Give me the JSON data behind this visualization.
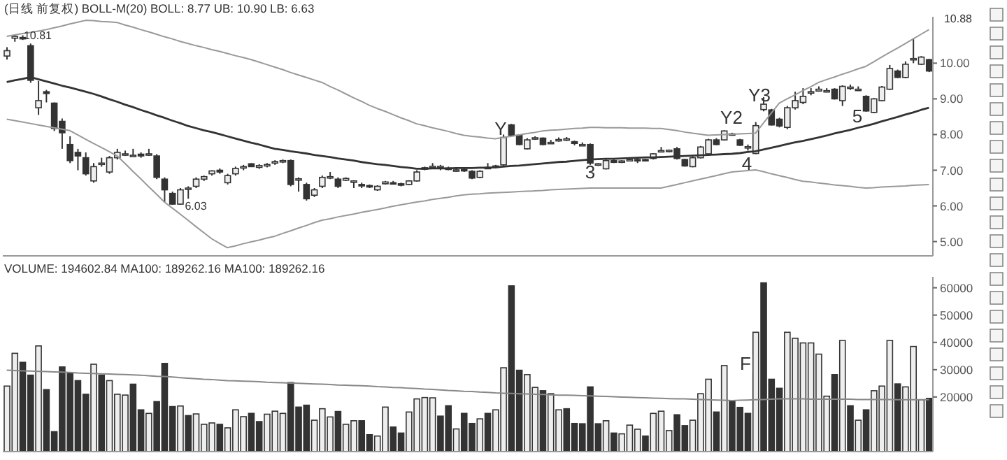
{
  "chart_data": [
    {
      "type": "candlestick",
      "title": "(日线 前复权) BOLL-M(20) BOLL: 8.77 UB: 10.90 LB: 6.63",
      "categories": [
        null,
        null,
        null,
        null,
        null,
        null,
        null,
        null,
        null,
        null,
        null,
        null,
        null,
        null,
        null,
        null,
        null,
        null,
        null,
        null,
        null,
        null,
        null,
        null,
        null,
        null,
        null,
        null,
        null,
        null,
        null,
        null,
        null,
        null,
        null,
        null,
        null,
        null,
        null,
        null,
        null,
        null,
        null,
        null,
        null,
        null,
        null,
        null,
        null,
        null,
        null,
        null,
        null,
        null,
        null,
        null,
        null,
        null,
        null,
        null,
        null,
        null,
        null,
        null,
        null,
        null,
        null,
        null,
        null,
        null,
        null,
        null,
        null,
        null,
        null,
        null,
        null,
        null,
        null,
        null,
        null,
        null,
        null,
        null,
        null,
        null,
        null,
        null,
        null,
        null,
        null,
        null,
        null,
        null,
        null,
        null,
        null,
        null,
        null,
        null,
        null,
        null,
        null,
        null,
        null,
        null,
        null,
        null,
        null,
        null,
        null,
        null,
        null,
        null,
        null,
        null,
        null,
        null
      ],
      "ylim": [
        4.6,
        11.3
      ],
      "yticks": [
        {
          "value": 5,
          "label": "5.00"
        },
        {
          "value": 6,
          "label": "6.00"
        },
        {
          "value": 7,
          "label": "7.00"
        },
        {
          "value": 8,
          "label": "8.00"
        },
        {
          "value": 9,
          "label": "9.00"
        },
        {
          "value": 10,
          "label": "10.00"
        }
      ],
      "tick_labels": "y",
      "color": "#333333",
      "ohlc": [
        [
          10.2,
          10.45,
          10.1,
          10.35
        ],
        [
          10.7,
          10.81,
          10.6,
          10.75
        ],
        [
          10.72,
          10.78,
          10.65,
          10.7
        ],
        [
          10.49,
          10.55,
          9.45,
          9.52
        ],
        [
          8.75,
          9.5,
          8.55,
          8.95
        ],
        [
          9.2,
          9.25,
          8.9,
          9.15
        ],
        [
          8.88,
          8.9,
          8.1,
          8.17
        ],
        [
          8.37,
          8.45,
          7.6,
          8.05
        ],
        [
          7.72,
          7.95,
          7.2,
          7.27
        ],
        [
          7.5,
          7.6,
          7.0,
          7.4
        ],
        [
          7.35,
          7.5,
          6.85,
          6.9
        ],
        [
          6.7,
          7.2,
          6.65,
          7.1
        ],
        [
          7.18,
          7.35,
          7.1,
          7.2
        ],
        [
          6.95,
          7.4,
          6.9,
          7.35
        ],
        [
          7.35,
          7.6,
          7.3,
          7.5
        ],
        [
          7.44,
          7.55,
          7.4,
          7.46
        ],
        [
          7.4,
          7.6,
          7.38,
          7.42
        ],
        [
          7.45,
          7.5,
          7.35,
          7.4
        ],
        [
          7.44,
          7.6,
          7.4,
          7.46
        ],
        [
          7.4,
          7.45,
          6.75,
          6.8
        ],
        [
          6.75,
          6.8,
          6.1,
          6.45
        ],
        [
          6.35,
          6.4,
          6.03,
          6.05
        ],
        [
          6.05,
          6.5,
          6.03,
          6.45
        ],
        [
          6.48,
          6.55,
          6.2,
          6.5
        ],
        [
          6.55,
          6.8,
          6.5,
          6.75
        ],
        [
          6.75,
          6.85,
          6.7,
          6.82
        ],
        [
          6.9,
          7.0,
          6.85,
          6.98
        ],
        [
          7.0,
          7.05,
          6.9,
          6.95
        ],
        [
          6.65,
          6.9,
          6.6,
          6.85
        ],
        [
          6.9,
          7.1,
          6.85,
          7.05
        ],
        [
          7.08,
          7.15,
          7.0,
          7.1
        ],
        [
          7.18,
          7.2,
          7.1,
          7.1
        ],
        [
          7.08,
          7.17,
          7.04,
          7.13
        ],
        [
          7.12,
          7.2,
          7.08,
          7.16
        ],
        [
          7.2,
          7.28,
          7.15,
          7.24
        ],
        [
          7.23,
          7.3,
          7.2,
          7.27
        ],
        [
          7.27,
          7.3,
          6.55,
          6.6
        ],
        [
          6.74,
          6.8,
          6.4,
          6.76
        ],
        [
          6.6,
          6.65,
          6.15,
          6.2
        ],
        [
          6.3,
          6.5,
          6.25,
          6.45
        ],
        [
          6.55,
          6.85,
          6.5,
          6.8
        ],
        [
          6.78,
          6.95,
          6.75,
          6.82
        ],
        [
          6.75,
          6.8,
          6.5,
          6.55
        ],
        [
          6.72,
          6.8,
          6.7,
          6.77
        ],
        [
          6.69,
          6.72,
          6.5,
          6.7
        ],
        [
          6.6,
          6.65,
          6.5,
          6.56
        ],
        [
          6.57,
          6.6,
          6.5,
          6.53
        ],
        [
          6.45,
          6.58,
          6.42,
          6.55
        ],
        [
          6.62,
          6.7,
          6.6,
          6.67
        ],
        [
          6.65,
          6.7,
          6.6,
          6.62
        ],
        [
          6.62,
          6.65,
          6.55,
          6.58
        ],
        [
          6.6,
          6.72,
          6.58,
          6.7
        ],
        [
          6.7,
          7.0,
          6.68,
          6.95
        ],
        [
          7.03,
          7.1,
          7.0,
          7.07
        ],
        [
          7.08,
          7.2,
          7.05,
          7.11
        ],
        [
          7.1,
          7.15,
          7.0,
          7.11
        ],
        [
          7.03,
          7.1,
          7.0,
          7.06
        ],
        [
          6.98,
          7.05,
          6.95,
          7.01
        ],
        [
          7.02,
          7.05,
          6.95,
          6.98
        ],
        [
          6.97,
          7.0,
          6.75,
          6.78
        ],
        [
          6.8,
          7.0,
          6.78,
          6.97
        ],
        [
          7.06,
          7.2,
          7.04,
          7.08
        ],
        [
          7.08,
          7.15,
          7.05,
          7.12
        ],
        [
          7.15,
          8.0,
          7.1,
          7.92
        ],
        [
          8.27,
          8.3,
          7.95,
          7.98
        ],
        [
          7.98,
          8.0,
          7.7,
          7.72
        ],
        [
          7.6,
          7.9,
          7.58,
          7.85
        ],
        [
          7.88,
          7.95,
          7.85,
          7.91
        ],
        [
          7.9,
          7.92,
          7.7,
          7.72
        ],
        [
          7.76,
          7.85,
          7.74,
          7.78
        ],
        [
          7.84,
          7.92,
          7.8,
          7.86
        ],
        [
          7.86,
          7.93,
          7.82,
          7.88
        ],
        [
          7.8,
          7.83,
          7.7,
          7.75
        ],
        [
          7.71,
          7.78,
          7.68,
          7.72
        ],
        [
          7.72,
          7.75,
          7.15,
          7.2
        ],
        [
          7.16,
          7.2,
          7.12,
          7.18
        ],
        [
          7.04,
          7.3,
          7.02,
          7.27
        ],
        [
          7.27,
          7.3,
          7.2,
          7.22
        ],
        [
          7.22,
          7.28,
          7.2,
          7.26
        ],
        [
          7.28,
          7.33,
          7.25,
          7.3
        ],
        [
          7.3,
          7.35,
          7.2,
          7.29
        ],
        [
          7.3,
          7.32,
          7.25,
          7.28
        ],
        [
          7.33,
          7.48,
          7.3,
          7.46
        ],
        [
          7.53,
          7.65,
          7.5,
          7.55
        ],
        [
          7.53,
          7.58,
          7.5,
          7.56
        ],
        [
          7.6,
          7.65,
          7.3,
          7.33
        ],
        [
          7.3,
          7.32,
          7.1,
          7.12
        ],
        [
          7.1,
          7.38,
          7.08,
          7.35
        ],
        [
          7.35,
          7.68,
          7.33,
          7.65
        ],
        [
          7.46,
          7.88,
          7.44,
          7.85
        ],
        [
          7.85,
          7.9,
          7.7,
          7.72
        ],
        [
          7.85,
          8.12,
          7.83,
          8.1
        ],
        [
          8.02,
          8.05,
          7.98,
          8.0
        ],
        [
          7.85,
          7.88,
          7.68,
          7.7
        ],
        [
          7.64,
          7.72,
          7.55,
          7.66
        ],
        [
          7.47,
          8.35,
          7.45,
          8.25
        ],
        [
          8.7,
          9.05,
          8.65,
          8.85
        ],
        [
          8.69,
          8.72,
          8.25,
          8.27
        ],
        [
          8.43,
          8.47,
          8.2,
          8.24
        ],
        [
          8.2,
          8.8,
          8.15,
          8.75
        ],
        [
          8.75,
          9.2,
          8.7,
          8.95
        ],
        [
          8.9,
          9.3,
          8.85,
          9.07
        ],
        [
          9.17,
          9.3,
          9.1,
          9.2
        ],
        [
          9.22,
          9.35,
          9.2,
          9.27
        ],
        [
          9.21,
          9.3,
          9.18,
          9.23
        ],
        [
          9.27,
          9.3,
          8.98,
          9.0
        ],
        [
          8.95,
          9.38,
          8.8,
          9.35
        ],
        [
          9.3,
          9.4,
          9.25,
          9.33
        ],
        [
          9.25,
          9.35,
          9.22,
          9.27
        ],
        [
          9.07,
          9.1,
          8.64,
          8.66
        ],
        [
          8.62,
          9.02,
          8.6,
          9.0
        ],
        [
          8.95,
          9.36,
          8.93,
          9.33
        ],
        [
          9.27,
          9.95,
          9.25,
          9.85
        ],
        [
          9.78,
          9.82,
          9.58,
          9.6
        ],
        [
          9.6,
          10.05,
          9.58,
          9.97
        ],
        [
          10.1,
          10.7,
          10.0,
          10.13
        ],
        [
          9.97,
          10.2,
          9.95,
          10.17
        ],
        [
          10.1,
          10.12,
          9.75,
          9.78
        ]
      ],
      "series": [
        {
          "type": "line",
          "color": "#333333",
          "values": [
            9.47,
            9.52,
            9.56,
            9.61,
            9.55,
            9.49,
            9.43,
            9.37,
            9.32,
            9.26,
            9.2,
            9.14,
            9.07,
            8.99,
            8.92,
            8.84,
            8.77,
            8.69,
            8.62,
            8.54,
            8.47,
            8.39,
            8.32,
            8.24,
            8.18,
            8.12,
            8.07,
            8.01,
            7.95,
            7.89,
            7.83,
            7.77,
            7.72,
            7.66,
            7.6,
            7.57,
            7.53,
            7.5,
            7.47,
            7.43,
            7.4,
            7.37,
            7.33,
            7.3,
            7.27,
            7.23,
            7.2,
            7.17,
            7.15,
            7.12,
            7.09,
            7.07,
            7.04,
            7.04,
            7.05,
            7.05,
            7.05,
            7.06,
            7.06,
            7.06,
            7.07,
            7.07,
            7.08,
            7.1,
            7.12,
            7.13,
            7.15,
            7.17,
            7.19,
            7.21,
            7.23,
            7.24,
            7.26,
            7.28,
            7.3,
            7.31,
            7.32,
            7.32,
            7.33,
            7.34,
            7.35,
            7.36,
            7.36,
            7.37,
            7.38,
            7.39,
            7.4,
            7.41,
            7.42,
            7.43,
            7.44,
            7.45,
            7.46,
            7.48,
            7.51,
            7.53,
            7.58,
            7.63,
            7.68,
            7.73,
            7.78,
            7.82,
            7.87,
            7.92,
            7.97,
            8.03,
            8.08,
            8.13,
            8.19,
            8.24,
            8.3,
            8.37,
            8.43,
            8.49,
            8.56,
            8.62,
            8.69,
            8.75
          ]
        },
        {
          "type": "line",
          "color": "#999999",
          "values": [
            10.75,
            10.79,
            10.83,
            10.86,
            10.9,
            10.94,
            10.99,
            11.04,
            11.1,
            11.15,
            11.2,
            11.19,
            11.17,
            11.16,
            11.14,
            11.07,
            11.01,
            10.94,
            10.88,
            10.81,
            10.74,
            10.68,
            10.61,
            10.55,
            10.49,
            10.44,
            10.38,
            10.33,
            10.27,
            10.21,
            10.16,
            10.1,
            10.03,
            9.96,
            9.89,
            9.82,
            9.74,
            9.67,
            9.6,
            9.53,
            9.46,
            9.35,
            9.25,
            9.14,
            9.03,
            8.93,
            8.82,
            8.73,
            8.65,
            8.56,
            8.47,
            8.39,
            8.3,
            8.25,
            8.19,
            8.14,
            8.09,
            8.03,
            7.98,
            7.95,
            7.93,
            7.9,
            7.88,
            7.92,
            7.95,
            7.99,
            8.03,
            8.06,
            8.1,
            8.12,
            8.13,
            8.15,
            8.17,
            8.18,
            8.2,
            8.2,
            8.19,
            8.19,
            8.19,
            8.18,
            8.18,
            8.18,
            8.17,
            8.17,
            8.14,
            8.11,
            8.07,
            8.04,
            8.01,
            7.98,
            7.99,
            8.0,
            8.01,
            8.02,
            8.03,
            8.04,
            8.32,
            8.6,
            8.88,
            9.0,
            9.11,
            9.23,
            9.34,
            9.46,
            9.54,
            9.61,
            9.69,
            9.76,
            9.84,
            9.91,
            10.04,
            10.17,
            10.3,
            10.42,
            10.55,
            10.68,
            10.81,
            10.94
          ]
        },
        {
          "type": "line",
          "color": "#999999",
          "values": [
            8.43,
            8.39,
            8.35,
            8.31,
            8.27,
            8.23,
            8.19,
            8.15,
            8.11,
            7.99,
            7.87,
            7.75,
            7.64,
            7.52,
            7.4,
            7.19,
            6.97,
            6.76,
            6.54,
            6.33,
            6.11,
            5.94,
            5.77,
            5.6,
            5.42,
            5.25,
            5.08,
            4.95,
            4.83,
            4.88,
            4.94,
            4.99,
            5.04,
            5.1,
            5.15,
            5.23,
            5.3,
            5.38,
            5.45,
            5.53,
            5.6,
            5.64,
            5.69,
            5.73,
            5.77,
            5.82,
            5.86,
            5.9,
            5.94,
            5.99,
            6.03,
            6.07,
            6.11,
            6.14,
            6.18,
            6.21,
            6.24,
            6.28,
            6.31,
            6.33,
            6.34,
            6.36,
            6.37,
            6.38,
            6.39,
            6.4,
            6.41,
            6.42,
            6.43,
            6.45,
            6.46,
            6.47,
            6.48,
            6.49,
            6.5,
            6.5,
            6.5,
            6.5,
            6.5,
            6.5,
            6.5,
            6.5,
            6.5,
            6.5,
            6.55,
            6.6,
            6.65,
            6.7,
            6.75,
            6.8,
            6.85,
            6.9,
            6.95,
            6.97,
            6.99,
            7.01,
            6.96,
            6.9,
            6.85,
            6.8,
            6.74,
            6.69,
            6.67,
            6.64,
            6.62,
            6.59,
            6.57,
            6.55,
            6.52,
            6.5,
            6.51,
            6.53,
            6.54,
            6.55,
            6.56,
            6.58,
            6.59,
            6.6
          ]
        }
      ],
      "annotations": [
        "10.81",
        "6.03",
        "Y",
        "Y2",
        "Y3",
        "3",
        "4",
        "5",
        "10.88"
      ]
    },
    {
      "type": "bar",
      "title": "VOLUME: 194602.84 MA100: 189262.16 MA100: 189262.16",
      "categories": [
        null,
        null,
        null,
        null,
        null,
        null,
        null,
        null,
        null,
        null,
        null,
        null,
        null,
        null,
        null,
        null,
        null,
        null,
        null,
        null,
        null,
        null,
        null,
        null,
        null,
        null,
        null,
        null,
        null,
        null,
        null,
        null,
        null,
        null,
        null,
        null,
        null,
        null,
        null,
        null,
        null,
        null,
        null,
        null,
        null,
        null,
        null,
        null,
        null,
        null,
        null,
        null,
        null,
        null,
        null,
        null,
        null,
        null,
        null,
        null,
        null,
        null,
        null,
        null,
        null,
        null,
        null,
        null,
        null,
        null,
        null,
        null,
        null,
        null,
        null,
        null,
        null,
        null,
        null,
        null,
        null,
        null,
        null,
        null,
        null,
        null,
        null,
        null,
        null,
        null,
        null,
        null,
        null,
        null,
        null,
        null,
        null,
        null,
        null,
        null,
        null,
        null,
        null,
        null,
        null,
        null,
        null,
        null,
        null,
        null,
        null,
        null,
        null,
        null,
        null,
        null,
        null,
        null
      ],
      "ylim": [
        0,
        64000
      ],
      "yticks": [
        20000,
        30000,
        40000,
        50000,
        60000
      ],
      "tick_labels": "y",
      "values": [
        24000,
        36000,
        32700,
        28000,
        38700,
        22700,
        7300,
        31000,
        28700,
        26000,
        21000,
        32000,
        28000,
        26000,
        21000,
        20700,
        24700,
        15300,
        14000,
        18300,
        32300,
        16500,
        16700,
        13200,
        13800,
        10000,
        10500,
        10000,
        8700,
        15300,
        12800,
        14000,
        11000,
        13700,
        14800,
        14000,
        25300,
        16300,
        17000,
        11500,
        15700,
        12700,
        14700,
        10000,
        11300,
        11300,
        6200,
        5700,
        16300,
        9000,
        6800,
        14500,
        19300,
        19800,
        19700,
        13000,
        16800,
        8300,
        14000,
        10300,
        12000,
        14000,
        15300,
        30700,
        60700,
        29800,
        28200,
        23500,
        22300,
        21200,
        15300,
        15700,
        10300,
        10200,
        23700,
        10200,
        11300,
        6800,
        6500,
        9700,
        8200,
        5700,
        14000,
        14800,
        7700,
        13500,
        9500,
        11500,
        21200,
        26500,
        14500,
        31500,
        18700,
        16200,
        14000,
        43700,
        61800,
        26500,
        23200,
        43700,
        41500,
        39800,
        39800,
        35700,
        20300,
        28200,
        40700,
        16800,
        11500,
        15300,
        22300,
        24000,
        40700,
        24800,
        23700,
        38500,
        19000,
        19500
      ],
      "colors": [
        "#eeeeee",
        "#eeeeee",
        "#333333",
        "#333333",
        "#eeeeee",
        "#333333",
        "#333333",
        "#333333",
        "#333333",
        "#333333",
        "#333333",
        "#eeeeee",
        "#333333",
        "#eeeeee",
        "#eeeeee",
        "#eeeeee",
        "#333333",
        "#333333",
        "#eeeeee",
        "#333333",
        "#333333",
        "#333333",
        "#eeeeee",
        "#333333",
        "#eeeeee",
        "#eeeeee",
        "#eeeeee",
        "#333333",
        "#eeeeee",
        "#eeeeee",
        "#eeeeee",
        "#333333",
        "#333333",
        "#eeeeee",
        "#eeeeee",
        "#eeeeee",
        "#333333",
        "#333333",
        "#333333",
        "#eeeeee",
        "#eeeeee",
        "#eeeeee",
        "#333333",
        "#eeeeee",
        "#eeeeee",
        "#333333",
        "#333333",
        "#eeeeee",
        "#eeeeee",
        "#333333",
        "#333333",
        "#eeeeee",
        "#eeeeee",
        "#eeeeee",
        "#eeeeee",
        "#333333",
        "#333333",
        "#eeeeee",
        "#333333",
        "#333333",
        "#eeeeee",
        "#333333",
        "#eeeeee",
        "#eeeeee",
        "#333333",
        "#333333",
        "#eeeeee",
        "#eeeeee",
        "#333333",
        "#eeeeee",
        "#eeeeee",
        "#333333",
        "#333333",
        "#333333",
        "#333333",
        "#333333",
        "#eeeeee",
        "#333333",
        "#eeeeee",
        "#eeeeee",
        "#eeeeee",
        "#333333",
        "#eeeeee",
        "#eeeeee",
        "#eeeeee",
        "#333333",
        "#333333",
        "#eeeeee",
        "#eeeeee",
        "#eeeeee",
        "#333333",
        "#eeeeee",
        "#333333",
        "#333333",
        "#333333",
        "#eeeeee",
        "#333333",
        "#333333",
        "#333333",
        "#eeeeee",
        "#eeeeee",
        "#eeeeee",
        "#eeeeee",
        "#eeeeee",
        "#eeeeee",
        "#333333",
        "#eeeeee",
        "#333333",
        "#eeeeee",
        "#333333",
        "#eeeeee",
        "#eeeeee",
        "#eeeeee",
        "#333333",
        "#eeeeee",
        "#eeeeee",
        "#eeeeee",
        "#333333"
      ],
      "series": [
        {
          "type": "line",
          "color": "#888888",
          "values": [
            29800,
            29700,
            29600,
            29500,
            29400,
            29300,
            29200,
            29100,
            29000,
            28800,
            28700,
            28600,
            28500,
            28400,
            28300,
            28200,
            28100,
            28000,
            27800,
            27600,
            27500,
            27300,
            27100,
            26900,
            26700,
            26500,
            26400,
            26200,
            26000,
            25900,
            25800,
            25700,
            25600,
            25400,
            25300,
            25200,
            25100,
            25000,
            24900,
            24800,
            24700,
            24600,
            24400,
            24300,
            24200,
            24100,
            24000,
            23800,
            23700,
            23500,
            23400,
            23200,
            23100,
            22900,
            22800,
            22600,
            22400,
            22300,
            22100,
            22000,
            21800,
            21700,
            21500,
            21400,
            21300,
            21200,
            21100,
            21000,
            20900,
            20800,
            20700,
            20700,
            20600,
            20500,
            20400,
            20300,
            20200,
            20100,
            20000,
            19900,
            19800,
            19700,
            19600,
            19500,
            19400,
            19300,
            19300,
            19200,
            19100,
            19000,
            18900,
            18800,
            18700,
            18800,
            18900,
            19000,
            19100,
            19200,
            19300,
            19300,
            19300,
            19300,
            19200,
            19200,
            19200,
            19200,
            19200,
            19200,
            19100,
            19100,
            19100,
            19100,
            19100,
            19000,
            19000,
            19000,
            19000,
            19000
          ]
        }
      ],
      "annotations": [
        "F"
      ]
    }
  ]
}
